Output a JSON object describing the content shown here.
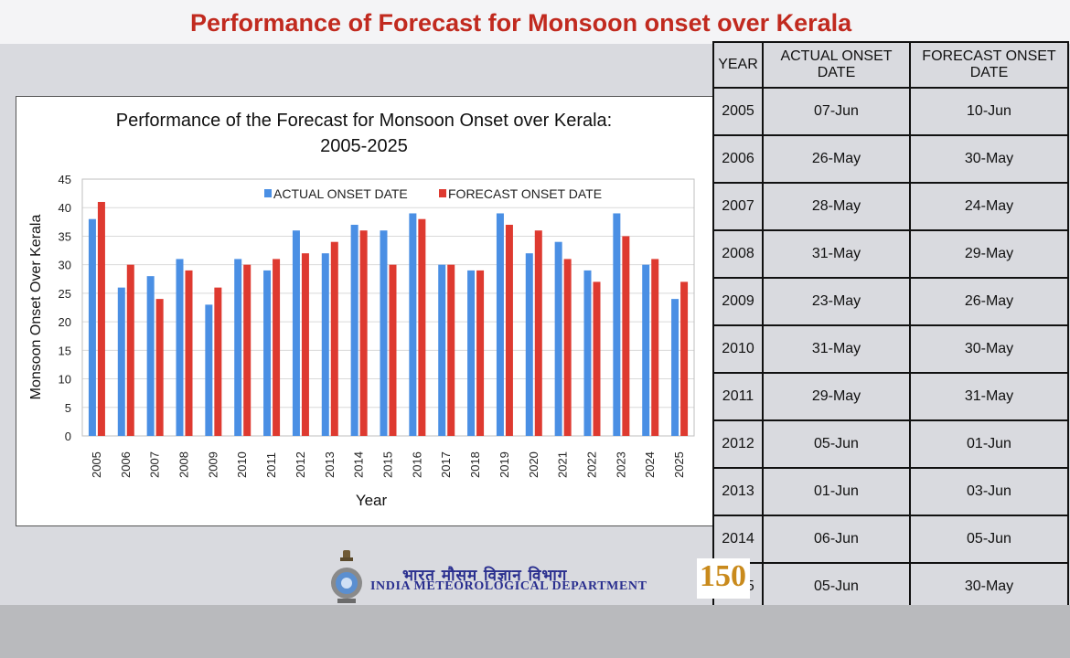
{
  "slide_title": "Performance of Forecast for  Monsoon onset over Kerala",
  "footer": {
    "hindi": "भारत मौसम विज्ञान विभाग",
    "org": "INDIA METEOROLOGICAL DEPARTMENT",
    "logo_text": "150"
  },
  "colors": {
    "actual": "#4a8fe4",
    "forecast": "#de3a30",
    "title_red": "#c12a1f",
    "footer_blue": "#2a2f8f"
  },
  "chart_data": {
    "type": "bar",
    "title_line1": "Performance of the Forecast for Monsoon Onset over Kerala:",
    "title_line2": "2005-2025",
    "xlabel": "Year",
    "ylabel": "Monsoon Onset Over Kerala",
    "ylim": [
      0,
      45
    ],
    "yticks": [
      "0",
      "5",
      "10",
      "15",
      "20",
      "25",
      "30",
      "35",
      "40",
      "45"
    ],
    "legend_position": "top",
    "grid": true,
    "categories": [
      "2005",
      "2006",
      "2007",
      "2008",
      "2009",
      "2010",
      "2011",
      "2012",
      "2013",
      "2014",
      "2015",
      "2016",
      "2017",
      "2018",
      "2019",
      "2020",
      "2021",
      "2022",
      "2023",
      "2024",
      "2025"
    ],
    "series": [
      {
        "name": "ACTUAL ONSET DATE",
        "values": [
          38,
          26,
          28,
          31,
          23,
          31,
          29,
          36,
          32,
          37,
          36,
          39,
          30,
          29,
          39,
          32,
          34,
          29,
          39,
          30,
          24
        ]
      },
      {
        "name": "FORECAST ONSET DATE",
        "values": [
          41,
          30,
          24,
          29,
          26,
          30,
          31,
          32,
          34,
          36,
          30,
          38,
          30,
          29,
          37,
          36,
          31,
          27,
          35,
          31,
          27
        ]
      }
    ]
  },
  "table": {
    "headers": [
      "YEAR",
      "ACTUAL ONSET DATE",
      "FORECAST ONSET DATE"
    ],
    "rows": [
      [
        "2005",
        "07-Jun",
        "10-Jun"
      ],
      [
        "2006",
        "26-May",
        "30-May"
      ],
      [
        "2007",
        "28-May",
        "24-May"
      ],
      [
        "2008",
        "31-May",
        "29-May"
      ],
      [
        "2009",
        "23-May",
        "26-May"
      ],
      [
        "2010",
        "31-May",
        "30-May"
      ],
      [
        "2011",
        "29-May",
        "31-May"
      ],
      [
        "2012",
        "05-Jun",
        "01-Jun"
      ],
      [
        "2013",
        "01-Jun",
        "03-Jun"
      ],
      [
        "2014",
        "06-Jun",
        "05-Jun"
      ],
      [
        "2015",
        "05-Jun",
        "30-May"
      ]
    ]
  }
}
